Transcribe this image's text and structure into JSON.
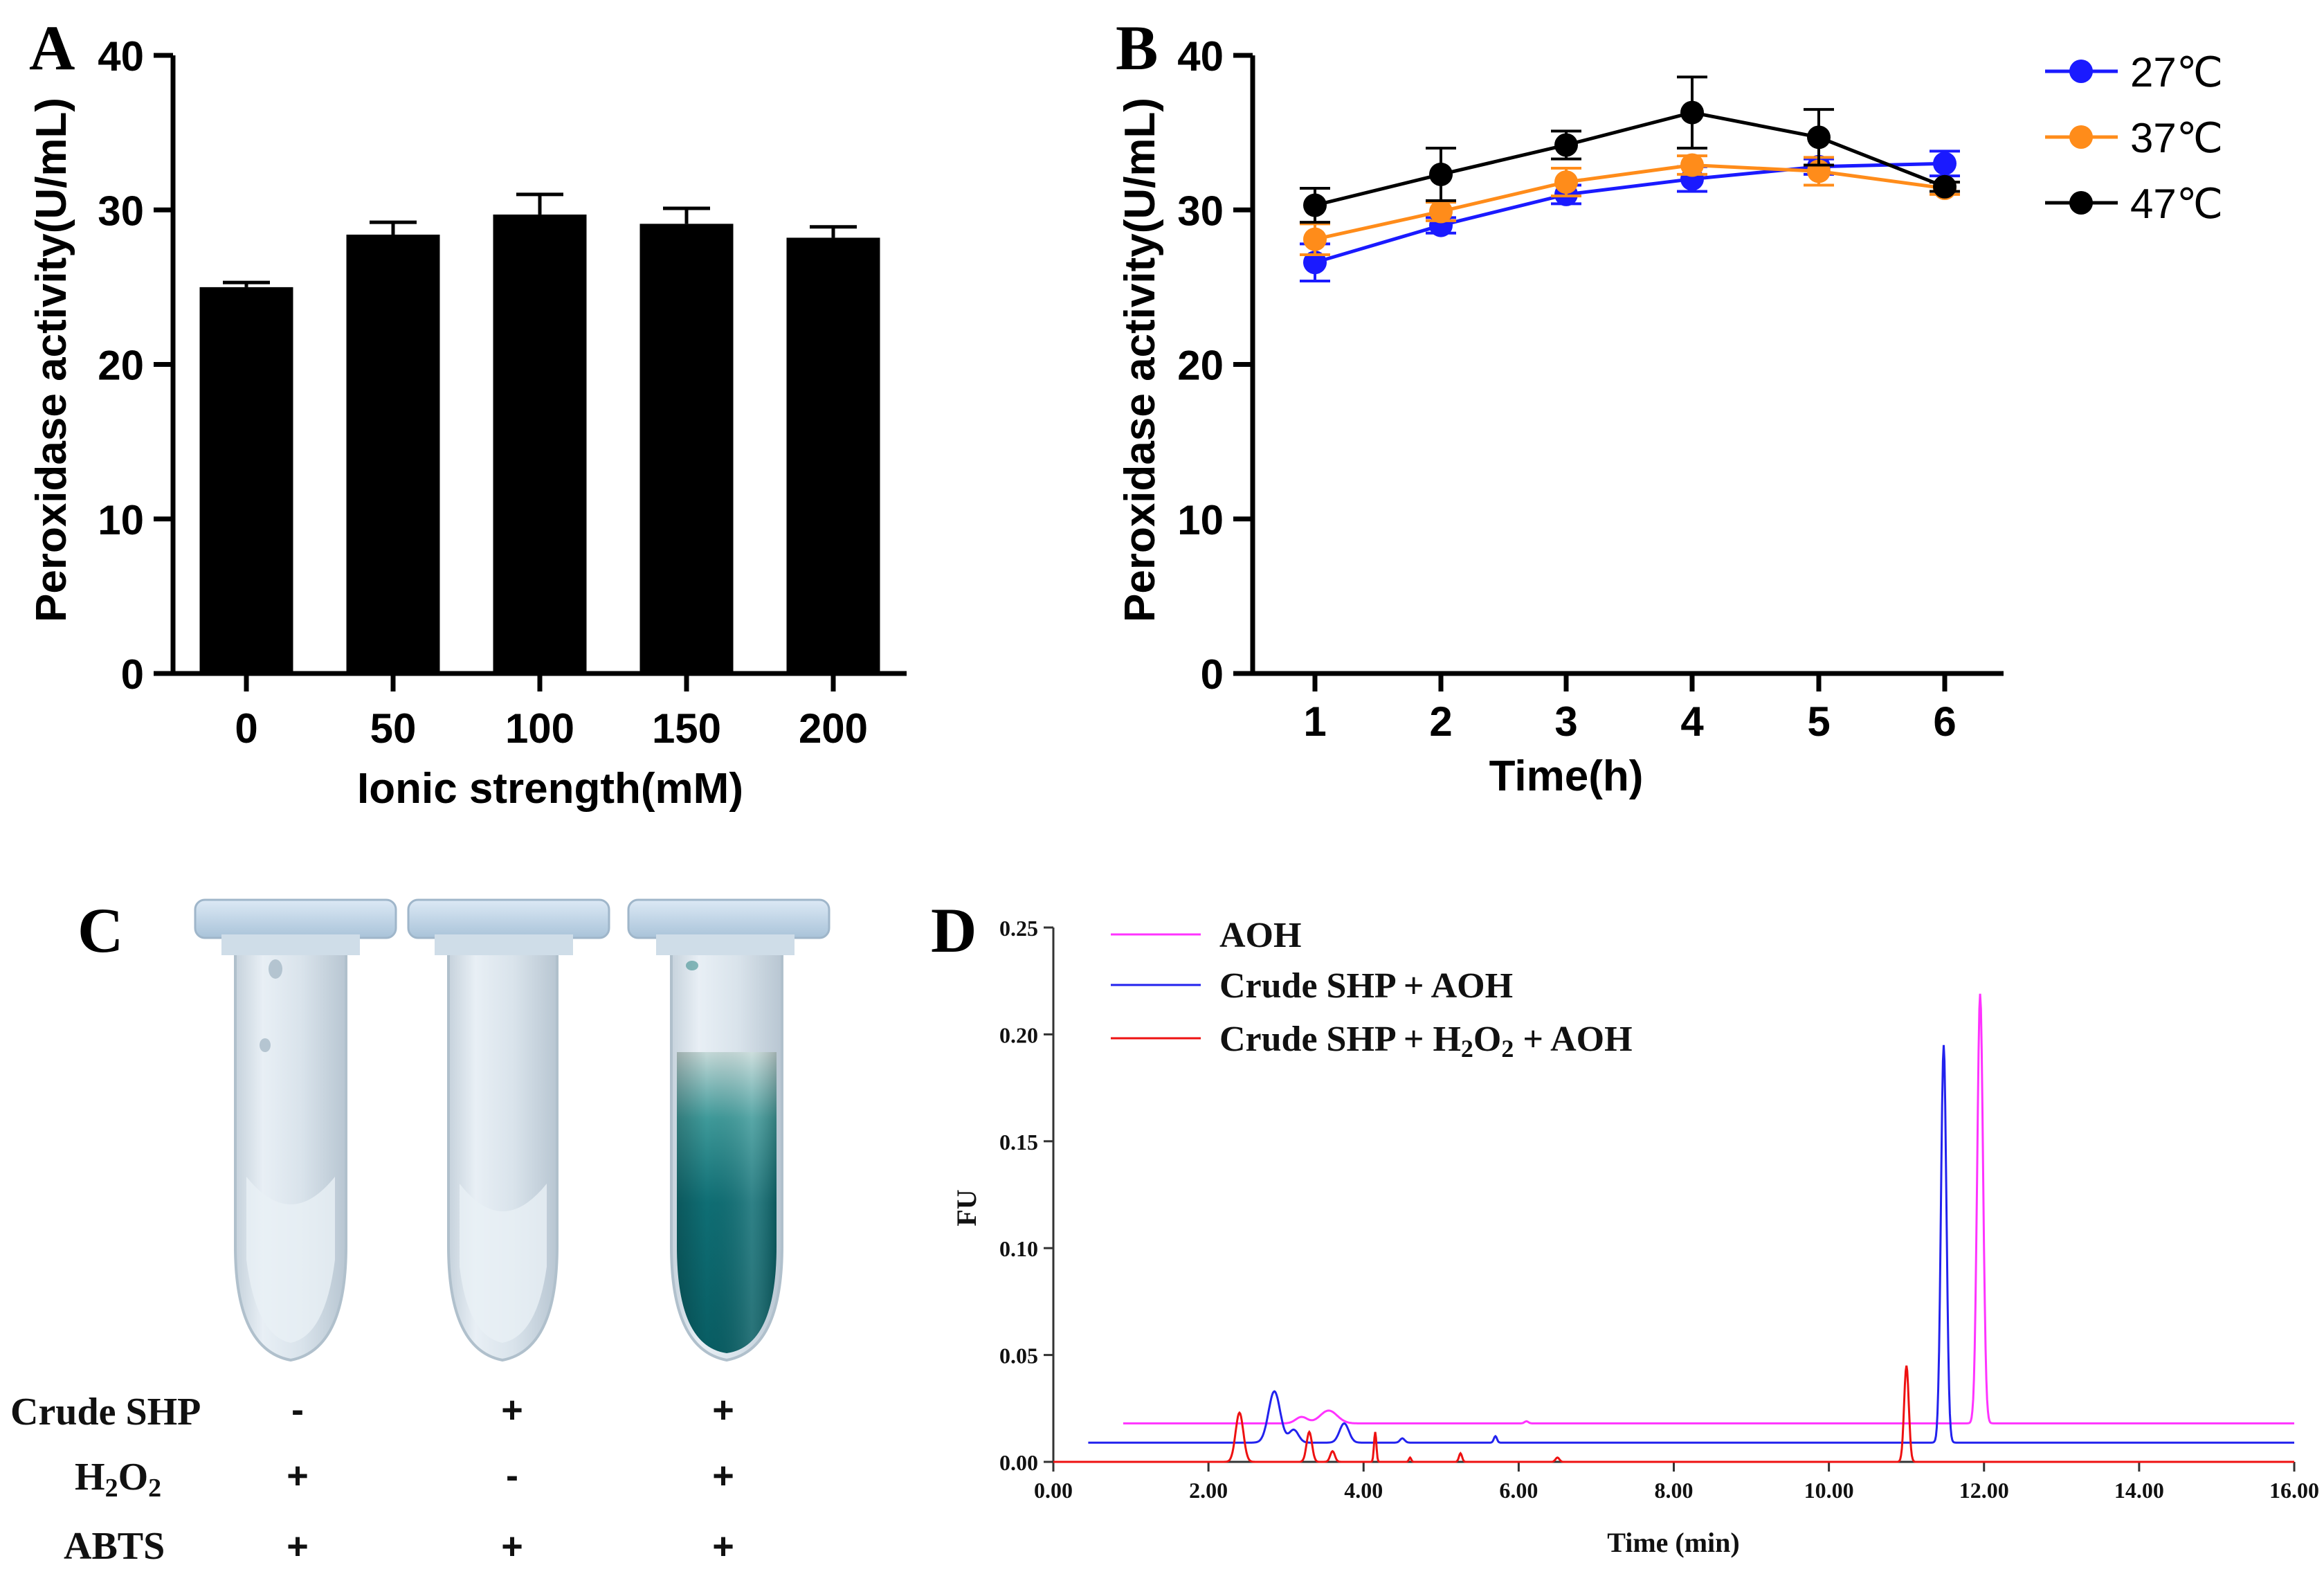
{
  "chart_data": [
    {
      "panel": "A",
      "type": "bar",
      "title": "",
      "xlabel": "Ionic strength(mM)",
      "ylabel": "Peroxidase activity(U/mL)",
      "categories": [
        "0",
        "50",
        "100",
        "150",
        "200"
      ],
      "values": [
        25.0,
        28.4,
        29.7,
        29.1,
        28.2
      ],
      "errors": [
        0.3,
        0.8,
        1.3,
        1.0,
        0.7
      ],
      "ylim": [
        0,
        40
      ],
      "yticks": [
        0,
        10,
        20,
        30,
        40
      ],
      "color": "#000000",
      "grid": false
    },
    {
      "panel": "B",
      "type": "line",
      "title": "",
      "xlabel": "Time(h)",
      "ylabel": "Peroxidase activity(U/mL)",
      "categories": [
        "1",
        "2",
        "3",
        "4",
        "5",
        "6"
      ],
      "x": [
        1,
        2,
        3,
        4,
        5,
        6
      ],
      "ylim": [
        0,
        40
      ],
      "yticks": [
        0,
        10,
        20,
        30,
        40
      ],
      "legend_position": "top-right",
      "series": [
        {
          "name": "27℃",
          "color": "#1a1aff",
          "values": [
            26.6,
            29.0,
            31.0,
            32.0,
            32.8,
            33.0
          ],
          "errors": [
            1.2,
            0.5,
            0.6,
            0.8,
            0.5,
            0.8
          ]
        },
        {
          "name": "37℃",
          "color": "#ff8c1a",
          "values": [
            28.1,
            29.9,
            31.8,
            32.9,
            32.5,
            31.4
          ],
          "errors": [
            1.0,
            0.6,
            0.9,
            0.6,
            0.9,
            0.4
          ]
        },
        {
          "name": "47℃",
          "color": "#000000",
          "values": [
            30.3,
            32.3,
            34.2,
            36.3,
            34.7,
            31.5
          ],
          "errors": [
            1.1,
            1.7,
            0.9,
            2.3,
            1.8,
            0.3
          ]
        }
      ]
    },
    {
      "panel": "D",
      "type": "line",
      "title": "",
      "xlabel": "Time (min)",
      "ylabel": "FU",
      "xlim": [
        0,
        16
      ],
      "ylim": [
        0,
        0.25
      ],
      "xticks": [
        "0.00",
        "2.00",
        "4.00",
        "6.00",
        "8.00",
        "10.00",
        "12.00",
        "14.00",
        "16.00"
      ],
      "yticks": [
        "0.00",
        "0.05",
        "0.10",
        "0.15",
        "0.20",
        "0.25"
      ],
      "legend_position": "top-left",
      "series": [
        {
          "name": "AOH",
          "color": "#ff33ff",
          "baseline": 0.018,
          "x_range": [
            0.9,
            16
          ],
          "peaks": [
            [
              3.55,
              0.006,
              0.22
            ],
            [
              3.2,
              0.003,
              0.15
            ],
            [
              6.1,
              0.001,
              0.05
            ],
            [
              11.95,
              0.201,
              0.075
            ]
          ]
        },
        {
          "name": "Crude SHP + AOH",
          "color": "#2222ee",
          "baseline": 0.009,
          "x_range": [
            0.45,
            16
          ],
          "peaks": [
            [
              2.85,
              0.024,
              0.15
            ],
            [
              3.1,
              0.006,
              0.12
            ],
            [
              3.75,
              0.009,
              0.12
            ],
            [
              4.5,
              0.002,
              0.06
            ],
            [
              5.7,
              0.003,
              0.04
            ],
            [
              11.48,
              0.186,
              0.07
            ]
          ]
        },
        {
          "name": "Crude SHP + H2O2 + AOH",
          "color": "#ee1111",
          "baseline": 0.0,
          "x_range": [
            0,
            16
          ],
          "peaks": [
            [
              2.4,
              0.023,
              0.1
            ],
            [
              3.3,
              0.014,
              0.07
            ],
            [
              3.6,
              0.005,
              0.06
            ],
            [
              4.15,
              0.014,
              0.03
            ],
            [
              4.6,
              0.002,
              0.03
            ],
            [
              5.25,
              0.004,
              0.04
            ],
            [
              6.5,
              0.002,
              0.05
            ],
            [
              11.0,
              0.045,
              0.06
            ]
          ]
        }
      ]
    }
  ],
  "panels": {
    "a": {
      "letter": "A"
    },
    "b": {
      "letter": "B"
    },
    "c": {
      "letter": "C",
      "rows": [
        {
          "label": "Crude SHP",
          "sub": "",
          "signs": [
            "-",
            "+",
            "+"
          ]
        },
        {
          "label": "H",
          "sub": "2",
          "label2": "O",
          "sub2": "2",
          "signs": [
            "+",
            "-",
            "+"
          ]
        },
        {
          "label": "ABTS",
          "sub": "",
          "signs": [
            "+",
            "+",
            "+"
          ]
        }
      ]
    },
    "d": {
      "letter": "D",
      "legend": [
        {
          "text": "AOH"
        },
        {
          "text": "Crude SHP + AOH"
        },
        {
          "pre": "Crude SHP + H",
          "s1": "2",
          "mid": "O",
          "s2": "2",
          "post": " + AOH"
        }
      ]
    }
  }
}
